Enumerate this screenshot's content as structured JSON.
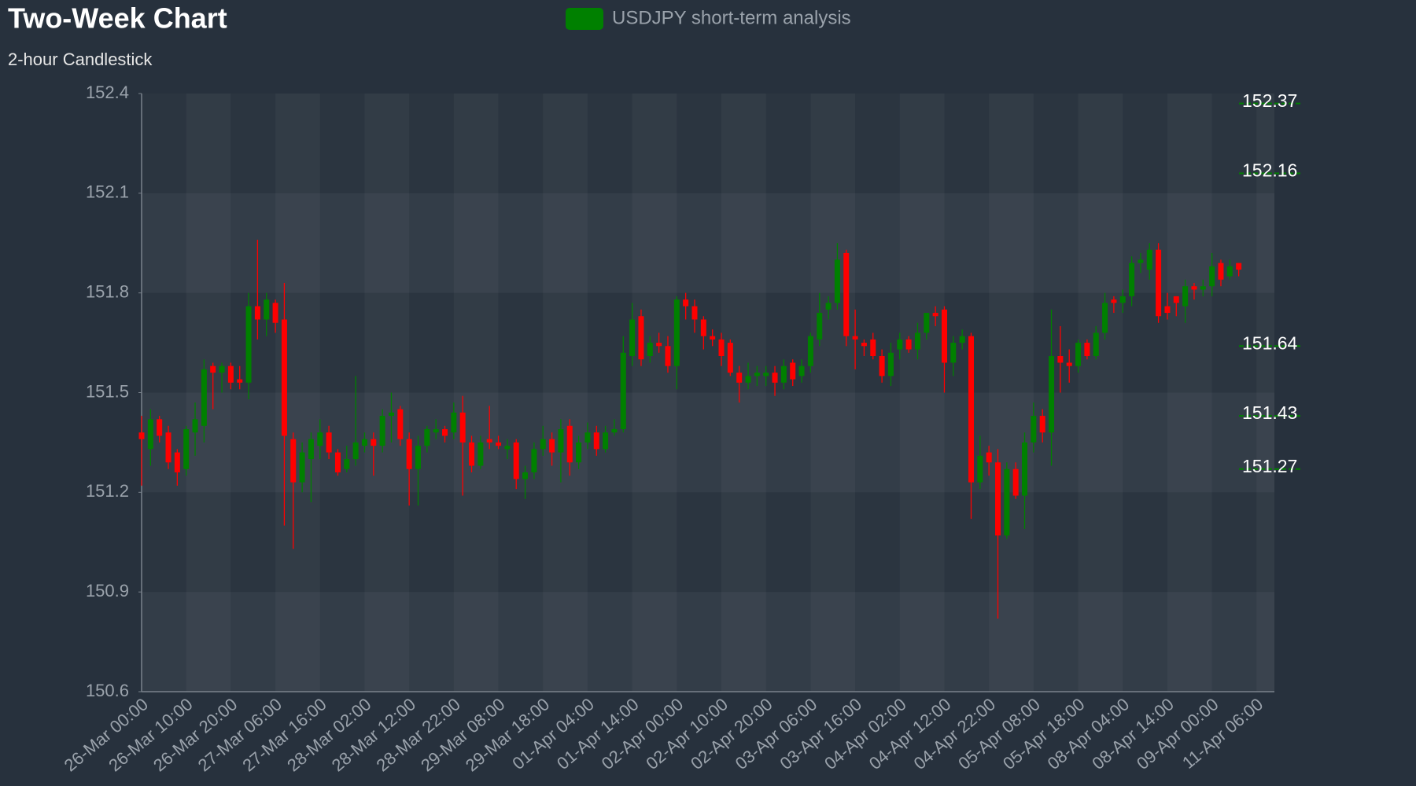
{
  "chart_data": {
    "type": "candlestick",
    "title": "Two-Week Chart",
    "subtitle": "2-hour Candlestick",
    "categories": [
      "26-Mar 00:00",
      null,
      null,
      null,
      null,
      "26-Mar 10:00",
      null,
      null,
      null,
      null,
      "26-Mar 20:00",
      null,
      null,
      null,
      null,
      "27-Mar 06:00",
      null,
      null,
      null,
      null,
      "27-Mar 16:00",
      null,
      null,
      null,
      null,
      "28-Mar 02:00",
      null,
      null,
      null,
      null,
      "28-Mar 12:00",
      null,
      null,
      null,
      null,
      "28-Mar 22:00",
      null,
      null,
      null,
      null,
      "29-Mar 08:00",
      null,
      null,
      null,
      null,
      "29-Mar 18:00",
      null,
      null,
      null,
      null,
      "01-Apr 04:00",
      null,
      null,
      null,
      null,
      "01-Apr 14:00",
      null,
      null,
      null,
      null,
      "02-Apr 00:00",
      null,
      null,
      null,
      null,
      "02-Apr 10:00",
      null,
      null,
      null,
      null,
      "02-Apr 20:00",
      null,
      null,
      null,
      null,
      "03-Apr 06:00",
      null,
      null,
      null,
      null,
      "03-Apr 16:00",
      null,
      null,
      null,
      null,
      "04-Apr 02:00",
      null,
      null,
      null,
      null,
      "04-Apr 12:00",
      null,
      null,
      null,
      null,
      "04-Apr 22:00",
      null,
      null,
      null,
      null,
      "05-Apr 08:00",
      null,
      null,
      null,
      null,
      "05-Apr 18:00",
      null,
      null,
      null,
      null,
      "08-Apr 04:00",
      null,
      null,
      null,
      null,
      "08-Apr 14:00",
      null,
      null,
      null,
      null,
      "09-Apr 00:00",
      null,
      null,
      null,
      null,
      "11-Apr 06:00",
      null,
      null
    ],
    "series": [
      {
        "name": "USDJPY short-term analysis",
        "color": "#008000",
        "down_color": "#ff0000",
        "open": [
          151.38,
          151.33,
          151.42,
          151.38,
          151.32,
          151.27,
          151.38,
          151.4,
          151.58,
          151.56,
          151.58,
          151.54,
          151.53,
          151.76,
          151.72,
          151.77,
          151.72,
          151.36,
          151.23,
          151.3,
          151.34,
          151.38,
          151.32,
          151.27,
          151.3,
          151.34,
          151.36,
          151.34,
          151.43,
          151.45,
          151.36,
          151.27,
          151.34,
          151.38,
          151.39,
          151.38,
          151.44,
          151.35,
          151.28,
          151.36,
          151.35,
          151.33,
          151.35,
          151.24,
          151.26,
          151.33,
          151.36,
          151.32,
          151.4,
          151.29,
          151.35,
          151.38,
          151.33,
          151.38,
          151.39,
          151.61,
          151.73,
          151.61,
          151.65,
          151.64,
          151.58,
          151.78,
          151.76,
          151.72,
          151.67,
          151.66,
          151.65,
          151.56,
          151.53,
          151.55,
          151.55,
          151.56,
          151.53,
          151.59,
          151.55,
          151.58,
          151.66,
          151.75,
          151.77,
          151.92,
          151.67,
          151.65,
          151.66,
          151.61,
          151.55,
          151.63,
          151.66,
          151.63,
          151.68,
          151.74,
          151.75,
          151.59,
          151.65,
          151.67,
          151.23,
          151.32,
          151.29,
          151.07,
          151.27,
          151.19,
          151.35,
          151.43,
          151.38,
          151.61,
          151.59,
          151.58,
          151.65,
          151.61,
          151.68,
          151.78,
          151.77,
          151.79,
          151.89,
          151.87,
          151.93,
          151.76,
          151.79,
          151.76,
          151.82,
          151.81,
          151.82,
          151.89,
          151.85,
          151.89,
          null,
          null,
          null,
          null
        ],
        "high": [
          151.43,
          151.45,
          151.43,
          151.4,
          151.33,
          151.4,
          151.47,
          151.6,
          151.59,
          151.59,
          151.59,
          151.58,
          151.8,
          151.96,
          151.8,
          151.78,
          151.83,
          151.38,
          151.35,
          151.38,
          151.42,
          151.4,
          151.33,
          151.34,
          151.55,
          151.38,
          151.38,
          151.45,
          151.5,
          151.46,
          151.38,
          151.37,
          151.4,
          151.42,
          151.4,
          151.47,
          151.49,
          151.37,
          151.37,
          151.46,
          151.37,
          151.36,
          151.36,
          151.28,
          151.35,
          151.4,
          151.38,
          151.42,
          151.42,
          151.37,
          151.41,
          151.4,
          151.4,
          151.42,
          151.67,
          151.77,
          151.75,
          151.67,
          151.68,
          151.67,
          151.79,
          151.8,
          151.78,
          151.73,
          151.69,
          151.68,
          151.66,
          151.58,
          151.59,
          151.58,
          151.58,
          151.58,
          151.6,
          151.6,
          151.6,
          151.68,
          151.8,
          151.79,
          151.95,
          151.93,
          151.75,
          151.66,
          151.68,
          151.63,
          151.65,
          151.68,
          151.67,
          151.71,
          151.74,
          151.76,
          151.76,
          151.67,
          151.69,
          151.68,
          151.37,
          151.34,
          151.33,
          151.29,
          151.29,
          151.38,
          151.47,
          151.45,
          151.75,
          151.7,
          151.63,
          151.66,
          151.66,
          151.7,
          151.8,
          151.79,
          151.81,
          151.91,
          151.92,
          151.95,
          151.95,
          151.8,
          151.79,
          151.84,
          151.83,
          151.84,
          151.92,
          151.9,
          151.9,
          151.89,
          null,
          null,
          null,
          null
        ],
        "low": [
          151.22,
          151.28,
          151.35,
          151.27,
          151.22,
          151.25,
          151.31,
          151.35,
          151.45,
          151.5,
          151.51,
          151.51,
          151.48,
          151.66,
          151.67,
          151.68,
          151.1,
          151.03,
          151.2,
          151.17,
          151.3,
          151.3,
          151.25,
          151.26,
          151.28,
          151.32,
          151.25,
          151.32,
          151.35,
          151.34,
          151.16,
          151.16,
          151.32,
          151.36,
          151.35,
          151.36,
          151.19,
          151.26,
          151.27,
          151.33,
          151.33,
          151.3,
          151.21,
          151.18,
          151.24,
          151.31,
          151.28,
          151.23,
          151.25,
          151.27,
          151.33,
          151.31,
          151.32,
          151.37,
          151.38,
          151.58,
          151.58,
          151.59,
          151.62,
          151.56,
          151.51,
          151.72,
          151.68,
          151.63,
          151.64,
          151.58,
          151.55,
          151.47,
          151.51,
          151.52,
          151.52,
          151.49,
          151.51,
          151.52,
          151.53,
          151.56,
          151.64,
          151.72,
          151.75,
          151.64,
          151.57,
          151.61,
          151.6,
          151.53,
          151.52,
          151.6,
          151.62,
          151.6,
          151.66,
          151.7,
          151.5,
          151.55,
          151.63,
          151.12,
          151.21,
          151.25,
          150.82,
          151.06,
          151.18,
          151.09,
          151.32,
          151.35,
          151.28,
          151.5,
          151.53,
          151.56,
          151.6,
          151.6,
          151.66,
          151.74,
          151.74,
          151.76,
          151.86,
          151.84,
          151.71,
          151.72,
          151.73,
          151.71,
          151.78,
          151.79,
          151.79,
          151.82,
          151.84,
          151.85,
          null,
          null,
          null,
          null
        ],
        "close": [
          151.36,
          151.42,
          151.37,
          151.29,
          151.26,
          151.39,
          151.42,
          151.57,
          151.56,
          151.58,
          151.53,
          151.53,
          151.76,
          151.72,
          151.78,
          151.71,
          151.37,
          151.23,
          151.32,
          151.36,
          151.38,
          151.32,
          151.26,
          151.3,
          151.35,
          151.36,
          151.34,
          151.43,
          151.44,
          151.36,
          151.27,
          151.34,
          151.39,
          151.39,
          151.37,
          151.44,
          151.35,
          151.28,
          151.35,
          151.35,
          151.34,
          151.34,
          151.24,
          151.26,
          151.33,
          151.36,
          151.32,
          151.39,
          151.29,
          151.35,
          151.38,
          151.33,
          151.38,
          151.39,
          151.62,
          151.72,
          151.6,
          151.65,
          151.64,
          151.58,
          151.78,
          151.76,
          151.72,
          151.67,
          151.66,
          151.61,
          151.56,
          151.53,
          151.55,
          151.56,
          151.56,
          151.53,
          151.58,
          151.54,
          151.58,
          151.67,
          151.74,
          151.77,
          151.9,
          151.67,
          151.66,
          151.64,
          151.61,
          151.55,
          151.62,
          151.66,
          151.63,
          151.68,
          151.74,
          151.73,
          151.59,
          151.65,
          151.67,
          151.23,
          151.31,
          151.29,
          151.07,
          151.27,
          151.19,
          151.35,
          151.43,
          151.38,
          151.61,
          151.59,
          151.58,
          151.65,
          151.61,
          151.68,
          151.77,
          151.77,
          151.79,
          151.89,
          151.9,
          151.93,
          151.73,
          151.74,
          151.77,
          151.82,
          151.81,
          151.82,
          151.88,
          151.84,
          151.88,
          151.87,
          null,
          null,
          null,
          null
        ]
      }
    ],
    "mark_lines": [
      152.37,
      152.16,
      151.64,
      151.43,
      151.27
    ],
    "mark_line_color": "#008000",
    "ylim": [
      150.6,
      152.4
    ],
    "yticks": [
      150.6,
      150.9,
      151.2,
      151.5,
      151.8,
      152.1,
      152.4
    ],
    "split_area": true,
    "legend": "top"
  }
}
